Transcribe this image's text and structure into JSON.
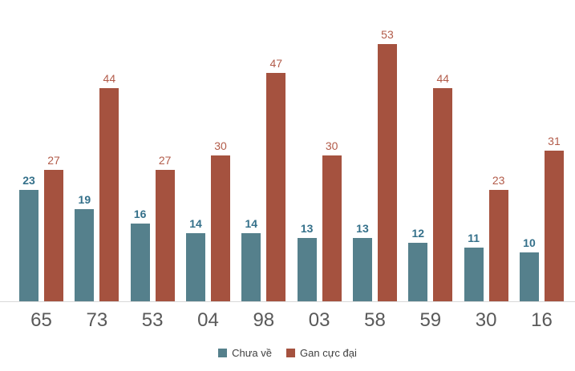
{
  "chart_data": {
    "type": "bar",
    "title": "",
    "xlabel": "",
    "ylabel": "",
    "categories": [
      "65",
      "73",
      "53",
      "04",
      "98",
      "03",
      "58",
      "59",
      "30",
      "16"
    ],
    "series": [
      {
        "name": "Chưa về",
        "color": "#55808C",
        "label_color": "#34708A",
        "values": [
          23,
          19,
          16,
          14,
          14,
          13,
          13,
          12,
          11,
          10
        ]
      },
      {
        "name": "Gan cực đại",
        "color": "#A5523F",
        "label_color": "#B25B49",
        "values": [
          27,
          44,
          27,
          30,
          47,
          30,
          53,
          44,
          23,
          31
        ]
      }
    ],
    "ylim": [
      0,
      53
    ],
    "grid": false,
    "data_labels": true,
    "legend_position": "bottom",
    "axis_label_color": "#595959",
    "axis_line_color": "#D9D9D9"
  }
}
